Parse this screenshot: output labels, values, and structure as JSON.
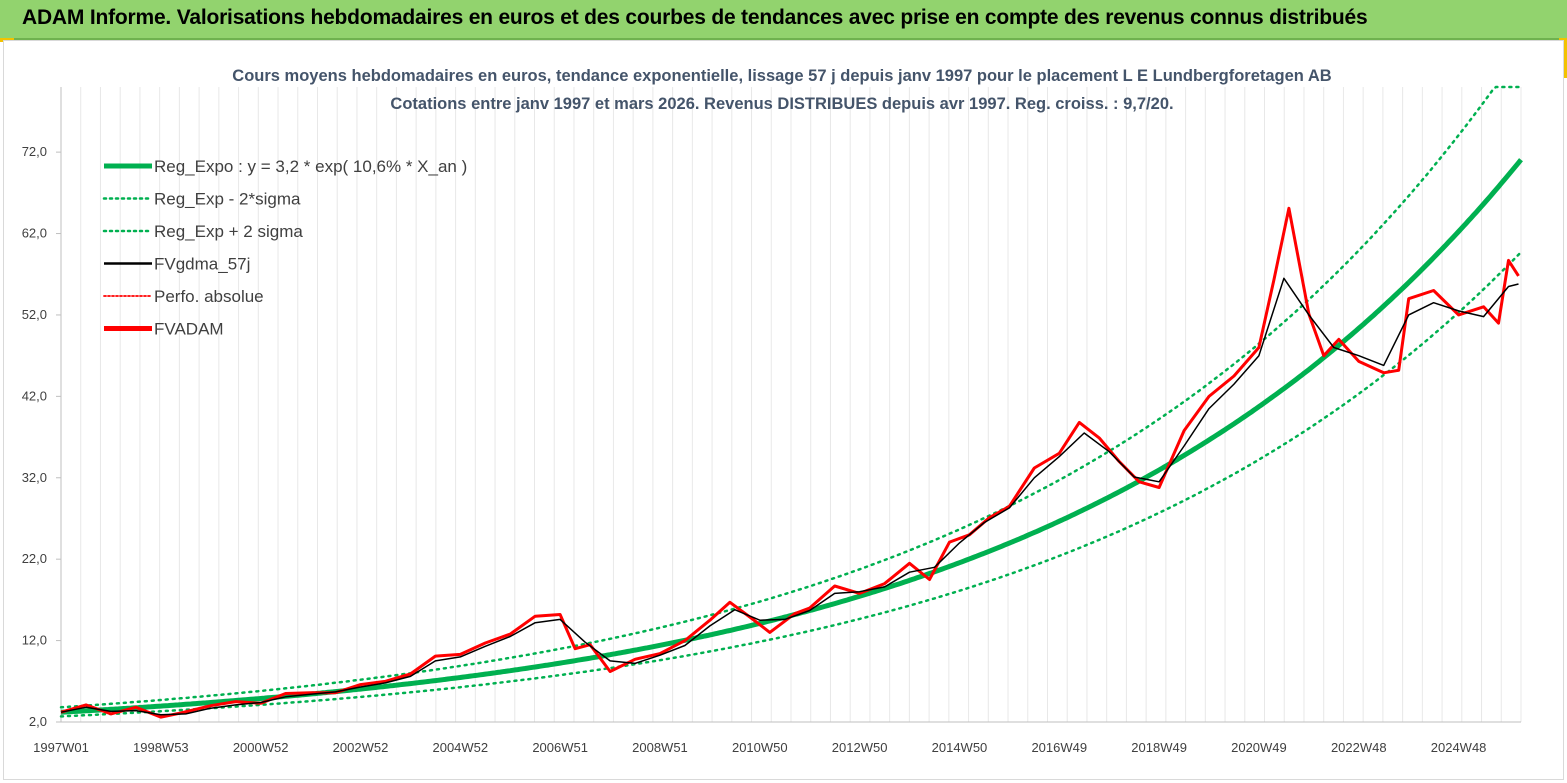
{
  "banner": {
    "title": "ADAM Informe. Valorisations hebdomadaires en euros et des courbes de tendances avec prise en compte des revenus connus distribués"
  },
  "chart_data": {
    "type": "line",
    "title": "Cours moyens hebdomadaires en euros, tendance exponentielle, lissage 57 j depuis janv 1997 pour le placement L E Lundbergforetagen AB",
    "subtitle": "Cotations entre janv 1997 et mars 2026. Revenus DISTRIBUES depuis avr 1997. Reg. croiss. : 9,7/20.",
    "xlabel": "",
    "ylabel": "",
    "ylim": [
      2.0,
      80.0
    ],
    "xlim": [
      1997.0,
      2026.25
    ],
    "y_ticks": [
      "2,0",
      "12,0",
      "22,0",
      "32,0",
      "42,0",
      "52,0",
      "62,0",
      "72,0"
    ],
    "x_ticks": [
      "1997W01",
      "1998W53",
      "2000W52",
      "2002W52",
      "2004W52",
      "2006W51",
      "2008W51",
      "2010W50",
      "2012W50",
      "2014W50",
      "2016W49",
      "2018W49",
      "2020W49",
      "2022W48",
      "2024W48"
    ],
    "grid": "vertical",
    "legend_position": "top-left",
    "regression": {
      "a": 3.2,
      "b": 0.106,
      "sigma_factor": 1.19
    },
    "legend": [
      {
        "label": "Reg_Expo : y = 3,2 * exp( 10,6% *  X_an )",
        "color": "#00b050",
        "style": "solid-thick"
      },
      {
        "label": "Reg_Exp - 2*sigma",
        "color": "#00b050",
        "style": "dotted"
      },
      {
        "label": "Reg_Exp + 2 sigma",
        "color": "#00b050",
        "style": "dotted"
      },
      {
        "label": "FVgdma_57j",
        "color": "#000000",
        "style": "solid"
      },
      {
        "label": "Perfo. absolue",
        "color": "#ff0000",
        "style": "dotted"
      },
      {
        "label": "FVADAM",
        "color": "#ff0000",
        "style": "solid-thick"
      }
    ],
    "series": [
      {
        "name": "FVADAM",
        "x": [
          1997.0,
          1997.5,
          1998.0,
          1998.5,
          1999.0,
          1999.4,
          2000.0,
          2000.5,
          2001.0,
          2001.5,
          2002.0,
          2002.5,
          2003.0,
          2003.5,
          2004.0,
          2004.5,
          2005.0,
          2005.5,
          2006.0,
          2006.5,
          2007.0,
          2007.3,
          2007.6,
          2008.0,
          2008.5,
          2009.0,
          2009.5,
          2010.0,
          2010.4,
          2010.8,
          2011.2,
          2011.7,
          2012.0,
          2012.5,
          2013.0,
          2013.5,
          2014.0,
          2014.4,
          2014.8,
          2015.2,
          2015.6,
          2016.0,
          2016.5,
          2017.0,
          2017.4,
          2017.8,
          2018.2,
          2018.6,
          2019.0,
          2019.5,
          2020.0,
          2020.5,
          2021.0,
          2021.3,
          2021.6,
          2022.0,
          2022.3,
          2022.6,
          2023.0,
          2023.5,
          2023.8,
          2024.0,
          2024.5,
          2025.0,
          2025.5,
          2025.8,
          2026.0,
          2026.2
        ],
        "values": [
          3.2,
          4.1,
          3.0,
          3.8,
          2.6,
          3.1,
          4.0,
          4.5,
          4.3,
          5.5,
          5.6,
          5.6,
          6.6,
          7.0,
          7.9,
          10.1,
          10.3,
          11.7,
          12.8,
          15.0,
          15.2,
          11.0,
          11.5,
          8.2,
          9.7,
          10.4,
          12.0,
          14.5,
          16.7,
          14.9,
          13.0,
          15.3,
          16.0,
          18.7,
          17.8,
          19.0,
          21.5,
          19.5,
          24.1,
          25.0,
          27.1,
          28.5,
          33.2,
          35.0,
          38.8,
          36.9,
          34.0,
          31.5,
          30.8,
          37.8,
          42.0,
          44.5,
          48.0,
          56.3,
          65.1,
          52.1,
          47.0,
          49.0,
          46.3,
          44.9,
          45.2,
          54.0,
          55.0,
          52.0,
          53.0,
          51.0,
          58.7,
          56.8
        ]
      },
      {
        "name": "FVgdma_57j",
        "x": [
          1997.0,
          1997.5,
          1998.0,
          1998.5,
          1999.0,
          1999.5,
          2000.0,
          2000.5,
          2001.0,
          2001.5,
          2002.0,
          2002.5,
          2003.0,
          2003.5,
          2004.0,
          2004.5,
          2005.0,
          2005.5,
          2006.0,
          2006.5,
          2007.0,
          2007.5,
          2008.0,
          2008.5,
          2009.0,
          2009.5,
          2010.0,
          2010.5,
          2011.0,
          2011.5,
          2012.0,
          2012.5,
          2013.0,
          2013.5,
          2014.0,
          2014.5,
          2015.0,
          2015.5,
          2016.0,
          2016.5,
          2017.0,
          2017.5,
          2018.0,
          2018.5,
          2019.0,
          2019.5,
          2020.0,
          2020.5,
          2021.0,
          2021.5,
          2022.0,
          2022.5,
          2023.0,
          2023.5,
          2024.0,
          2024.5,
          2025.0,
          2025.5,
          2026.0,
          2026.2
        ],
        "values": [
          3.2,
          3.8,
          3.3,
          3.4,
          2.9,
          3.0,
          3.7,
          4.1,
          4.4,
          5.1,
          5.4,
          5.7,
          6.3,
          6.8,
          7.6,
          9.5,
          10.0,
          11.3,
          12.5,
          14.2,
          14.6,
          11.8,
          9.5,
          9.2,
          10.2,
          11.4,
          13.8,
          15.8,
          14.5,
          14.6,
          15.7,
          17.8,
          18.0,
          18.6,
          20.4,
          21.0,
          24.0,
          26.5,
          28.3,
          32.0,
          34.6,
          37.5,
          35.2,
          32.1,
          31.5,
          35.9,
          40.5,
          43.5,
          47.0,
          56.5,
          52.0,
          48.0,
          47.0,
          45.8,
          52.0,
          53.5,
          52.5,
          51.8,
          55.5,
          55.8
        ]
      }
    ]
  }
}
